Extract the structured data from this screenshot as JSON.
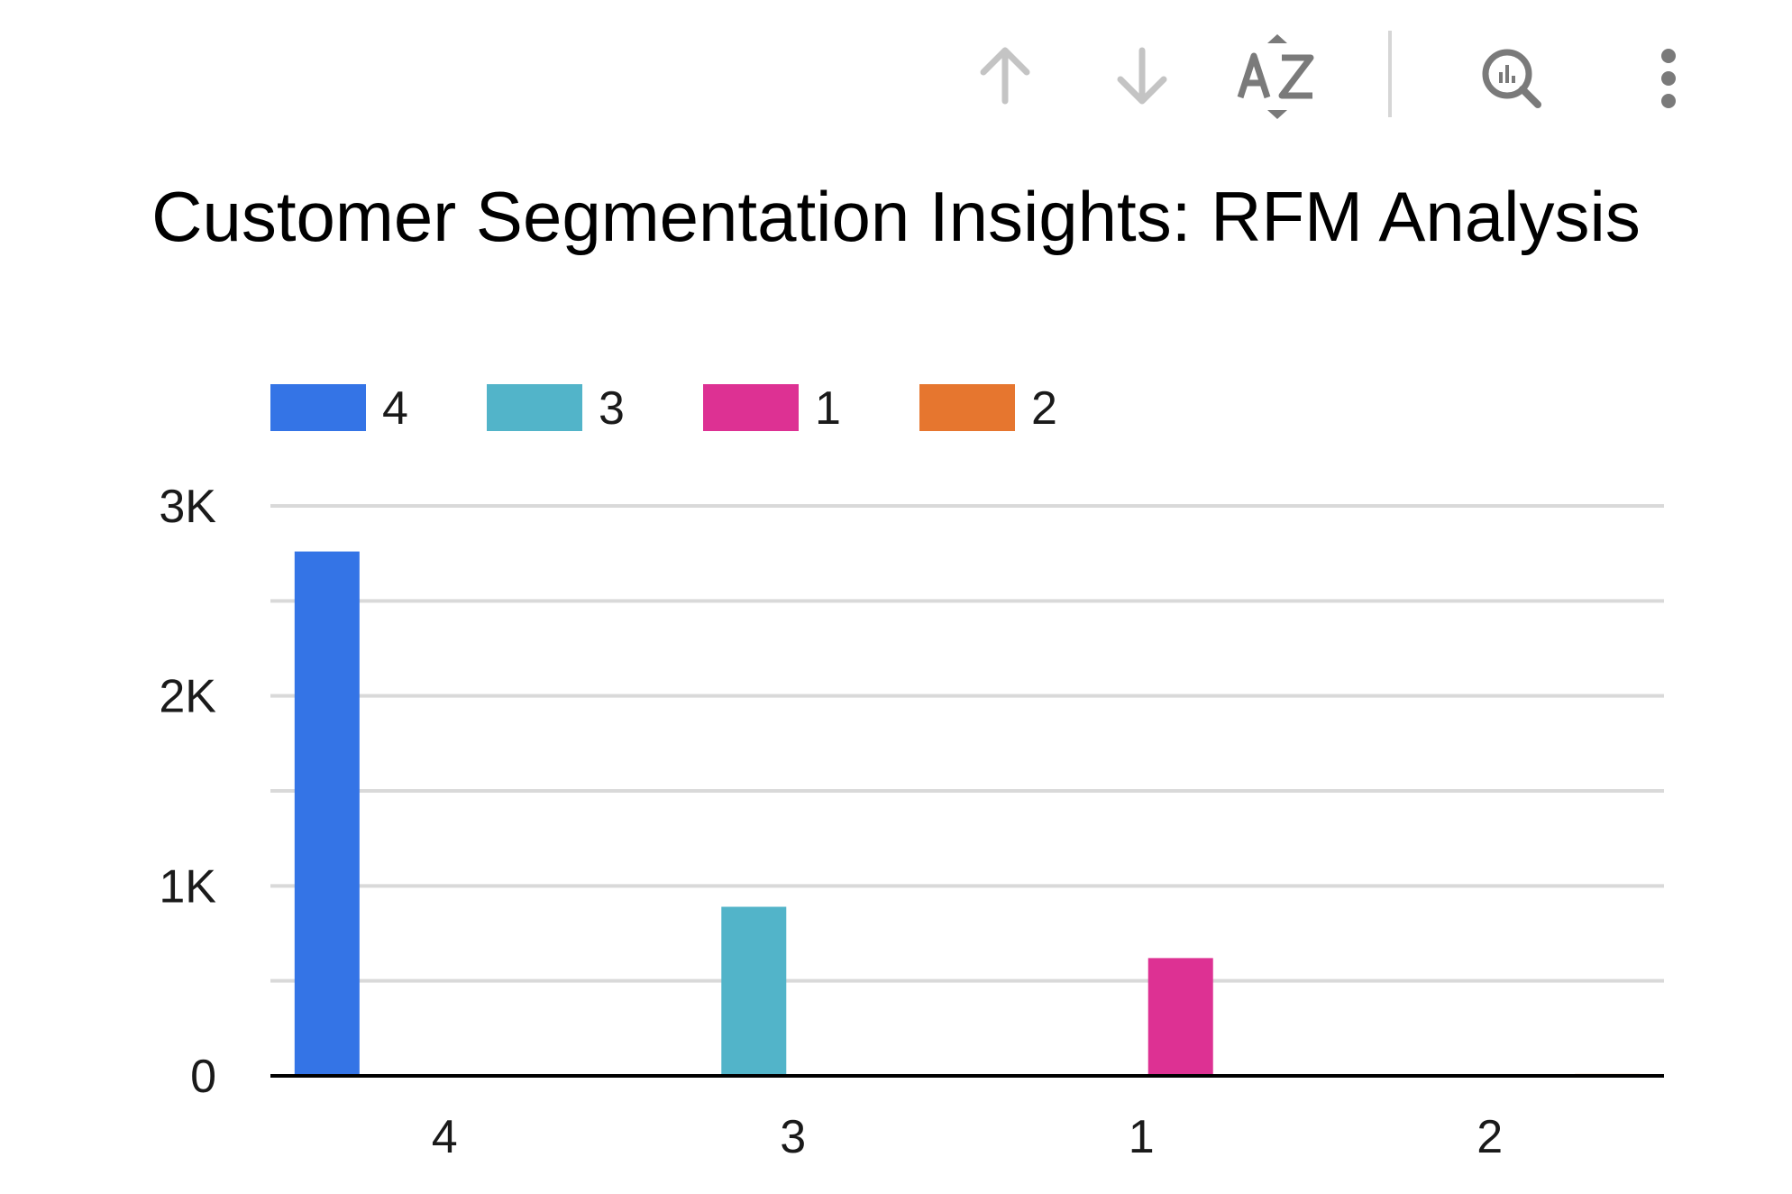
{
  "toolbar": {
    "icons": [
      "arrow-up-icon",
      "arrow-down-icon",
      "sort-az-icon",
      "explore-chart-icon",
      "more-vert-icon"
    ],
    "icon_color": "#7a7a7a",
    "icon_color_disabled": "#c4c4c4"
  },
  "chart_data": {
    "type": "bar",
    "title": "Customer Segmentation Insights: RFM Analysis",
    "xlabel": "",
    "ylabel": "",
    "categories": [
      "4",
      "3",
      "1",
      "2"
    ],
    "series": [
      {
        "name": "4",
        "color": "#3474e6",
        "values": [
          2760,
          0,
          0,
          0
        ]
      },
      {
        "name": "3",
        "color": "#52b4c9",
        "values": [
          0,
          890,
          0,
          0
        ]
      },
      {
        "name": "1",
        "color": "#dd3193",
        "values": [
          0,
          0,
          620,
          0
        ]
      },
      {
        "name": "2",
        "color": "#e6762f",
        "values": [
          0,
          0,
          0,
          10
        ]
      }
    ],
    "ylim": [
      0,
      3000
    ],
    "yticks": [
      0,
      1000,
      2000,
      3000
    ],
    "ytick_labels": [
      "0",
      "1K",
      "2K",
      "3K"
    ],
    "minor_gridlines": true,
    "grid": true,
    "legend_position": "top-left",
    "gridline_color": "#d9d9d9",
    "axis_color": "#000000"
  }
}
